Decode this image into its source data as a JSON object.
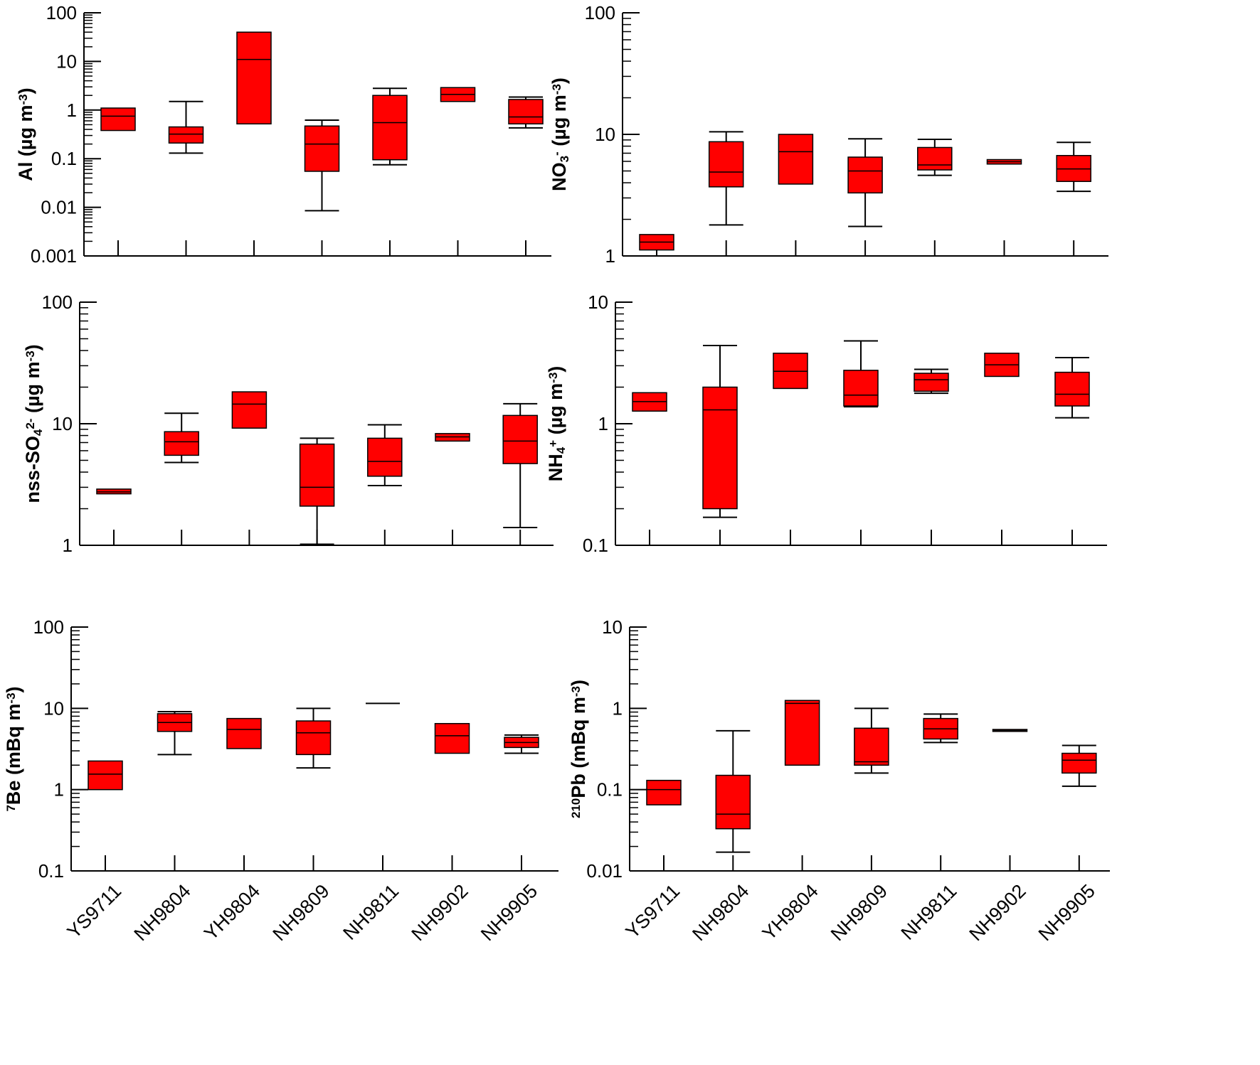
{
  "colors": {
    "box_fill": "#ff0000",
    "line": "#000000",
    "background": "#ffffff"
  },
  "chart_data": [
    {
      "id": "al",
      "type": "box",
      "scale": "log",
      "ylabel": {
        "main": "Al (µg m",
        "sup": "-3",
        "tail": ")"
      },
      "yticks": [
        "0.001",
        "0.01",
        "0.1",
        "1",
        "10",
        "100"
      ],
      "ylim": [
        0.001,
        100
      ],
      "categories": [
        "YS9711",
        "NH9804",
        "YH9804",
        "NH9809",
        "NH9811",
        "NH9902",
        "NH9905"
      ],
      "boxes": [
        {
          "q1": 0.38,
          "median": 0.75,
          "q3": 1.1
        },
        {
          "min": 0.13,
          "q1": 0.21,
          "median": 0.32,
          "q3": 0.45,
          "max": 1.5
        },
        {
          "q1": 0.52,
          "median": 11,
          "q3": 40
        },
        {
          "min": 0.0085,
          "q1": 0.055,
          "median": 0.2,
          "q3": 0.47,
          "max": 0.62
        },
        {
          "min": 0.075,
          "q1": 0.095,
          "median": 0.55,
          "q3": 2.0,
          "max": 2.8
        },
        {
          "q1": 1.5,
          "median": 2.1,
          "q3": 2.9
        },
        {
          "min": 0.43,
          "q1": 0.52,
          "median": 0.72,
          "q3": 1.65,
          "max": 1.85
        }
      ]
    },
    {
      "id": "no3",
      "type": "box",
      "scale": "log",
      "ylabel": {
        "main": "NO",
        "sub": "3",
        "sup": "-",
        "tail": " (µg m",
        "sup2": "-3",
        "tail2": ")"
      },
      "yticks": [
        "1",
        "10",
        "100"
      ],
      "ylim": [
        1,
        100
      ],
      "categories": [
        "YS9711",
        "NH9804",
        "YH9804",
        "NH9809",
        "NH9811",
        "NH9902",
        "NH9905"
      ],
      "boxes": [
        {
          "q1": 1.12,
          "median": 1.3,
          "q3": 1.5
        },
        {
          "min": 1.8,
          "q1": 3.7,
          "median": 4.9,
          "q3": 8.7,
          "max": 10.5
        },
        {
          "q1": 3.9,
          "median": 7.2,
          "q3": 10
        },
        {
          "min": 1.75,
          "q1": 3.3,
          "median": 5.0,
          "q3": 6.5,
          "max": 9.2
        },
        {
          "min": 4.6,
          "q1": 5.1,
          "median": 5.6,
          "q3": 7.8,
          "max": 9.1
        },
        {
          "q1": 5.7,
          "median": 5.95,
          "q3": 6.2
        },
        {
          "min": 3.4,
          "q1": 4.1,
          "median": 5.2,
          "q3": 6.7,
          "max": 8.6
        }
      ]
    },
    {
      "id": "so4",
      "type": "box",
      "scale": "log",
      "ylabel": {
        "main": "nss-SO",
        "sub": "4",
        "sup": "2-",
        "tail": " (µg m",
        "sup2": "-3",
        "tail2": ")"
      },
      "yticks": [
        "1",
        "10",
        "100"
      ],
      "ylim": [
        1,
        100
      ],
      "categories": [
        "YS9711",
        "NH9804",
        "YH9804",
        "NH9809",
        "NH9811",
        "NH9902",
        "NH9905"
      ],
      "boxes": [
        {
          "q1": 2.65,
          "median": 2.75,
          "q3": 2.9
        },
        {
          "min": 4.8,
          "q1": 5.5,
          "median": 7.1,
          "q3": 8.6,
          "max": 12.2
        },
        {
          "q1": 9.2,
          "median": 14.5,
          "q3": 18.3
        },
        {
          "min": 1.02,
          "q1": 2.1,
          "median": 3.0,
          "q3": 6.8,
          "max": 7.6
        },
        {
          "min": 3.1,
          "q1": 3.7,
          "median": 4.9,
          "q3": 7.6,
          "max": 9.8
        },
        {
          "q1": 7.2,
          "median": 7.8,
          "q3": 8.3
        },
        {
          "min": 1.4,
          "q1": 4.7,
          "median": 7.2,
          "q3": 11.7,
          "max": 14.6
        }
      ]
    },
    {
      "id": "nh4",
      "type": "box",
      "scale": "log",
      "ylabel": {
        "main": "NH",
        "sub": "4",
        "sup": "+",
        "tail": " (µg m",
        "sup2": "-3",
        "tail2": ")"
      },
      "yticks": [
        "0.1",
        "1",
        "10"
      ],
      "ylim": [
        0.1,
        10
      ],
      "categories": [
        "YS9711",
        "NH9804",
        "YH9804",
        "NH9809",
        "NH9811",
        "NH9902",
        "NH9905"
      ],
      "boxes": [
        {
          "q1": 1.27,
          "median": 1.52,
          "q3": 1.8
        },
        {
          "min": 0.17,
          "q1": 0.2,
          "median": 1.3,
          "q3": 2.0,
          "max": 4.4
        },
        {
          "q1": 1.95,
          "median": 2.7,
          "q3": 3.8
        },
        {
          "min": 1.38,
          "q1": 1.4,
          "median": 1.72,
          "q3": 2.75,
          "max": 4.8
        },
        {
          "min": 1.78,
          "q1": 1.85,
          "median": 2.3,
          "q3": 2.6,
          "max": 2.8
        },
        {
          "q1": 2.45,
          "median": 3.05,
          "q3": 3.8
        },
        {
          "min": 1.12,
          "q1": 1.4,
          "median": 1.75,
          "q3": 2.65,
          "max": 3.5
        }
      ]
    },
    {
      "id": "be7",
      "type": "box",
      "scale": "log",
      "ylabel": {
        "pre_sup": "7",
        "main": "Be (mBq m",
        "sup": "-3",
        "tail": ")"
      },
      "yticks": [
        "0.1",
        "1",
        "10",
        "100"
      ],
      "ylim": [
        0.1,
        100
      ],
      "categories": [
        "YS9711",
        "NH9804",
        "YH9804",
        "NH9809",
        "NH9811",
        "NH9902",
        "NH9905"
      ],
      "x_labels_visible": true,
      "boxes": [
        {
          "q1": 1.0,
          "median": 1.55,
          "q3": 2.25
        },
        {
          "min": 2.7,
          "q1": 5.2,
          "median": 6.7,
          "q3": 8.6,
          "max": 9.1
        },
        {
          "q1": 3.2,
          "median": 5.5,
          "q3": 7.5
        },
        {
          "min": 1.85,
          "q1": 2.7,
          "median": 5.0,
          "q3": 7.0,
          "max": 10.0
        },
        {
          "single": 11.5
        },
        {
          "q1": 2.8,
          "median": 4.6,
          "q3": 6.5
        },
        {
          "min": 2.8,
          "q1": 3.3,
          "median": 3.8,
          "q3": 4.4,
          "max": 4.7
        }
      ]
    },
    {
      "id": "pb210",
      "type": "box",
      "scale": "log",
      "ylabel": {
        "pre_sup": "210",
        "main": "Pb (mBq m",
        "sup": "-3",
        "tail": ")"
      },
      "yticks": [
        "0.01",
        "0.1",
        "1",
        "10"
      ],
      "ylim": [
        0.01,
        10
      ],
      "categories": [
        "YS9711",
        "NH9804",
        "YH9804",
        "NH9809",
        "NH9811",
        "NH9902",
        "NH9905"
      ],
      "x_labels_visible": true,
      "boxes": [
        {
          "q1": 0.065,
          "median": 0.1,
          "q3": 0.13
        },
        {
          "min": 0.017,
          "q1": 0.033,
          "median": 0.05,
          "q3": 0.15,
          "max": 0.53
        },
        {
          "q1": 0.2,
          "median": 1.15,
          "q3": 1.25
        },
        {
          "min": 0.16,
          "q1": 0.2,
          "median": 0.22,
          "q3": 0.57,
          "max": 1.0
        },
        {
          "min": 0.38,
          "q1": 0.42,
          "median": 0.56,
          "q3": 0.75,
          "max": 0.85
        },
        {
          "q1": 0.52,
          "median": 0.535,
          "q3": 0.55
        },
        {
          "min": 0.11,
          "q1": 0.16,
          "median": 0.23,
          "q3": 0.28,
          "max": 0.35
        }
      ]
    }
  ]
}
